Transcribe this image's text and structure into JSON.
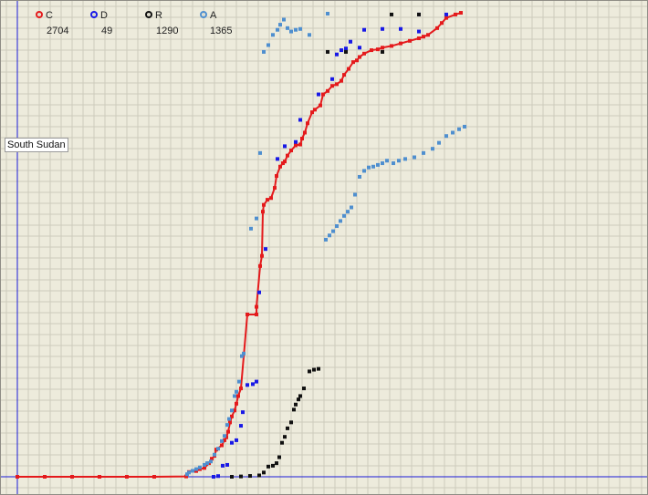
{
  "legend": [
    {
      "key": "C",
      "count": "2704",
      "color": "#e41a1c"
    },
    {
      "key": "D",
      "count": "49",
      "color": "#1919e6"
    },
    {
      "key": "R",
      "count": "1290",
      "color": "#111111"
    },
    {
      "key": "A",
      "count": "1365",
      "color": "#4f8fcf"
    }
  ],
  "country_label": "South Sudan",
  "chart_data": {
    "type": "scatter",
    "title": "",
    "xlabel": "",
    "ylabel": "",
    "grid": true,
    "legend_position": "top-left",
    "xlim": [
      0,
      690
    ],
    "ylim": [
      0,
      2800
    ],
    "series": [
      {
        "name": "C",
        "color": "#e41a1c",
        "line": true,
        "points": [
          [
            0,
            0
          ],
          [
            30,
            0
          ],
          [
            60,
            0
          ],
          [
            90,
            0
          ],
          [
            120,
            0
          ],
          [
            150,
            0
          ],
          [
            185,
            2
          ],
          [
            188,
            28
          ],
          [
            196,
            34
          ],
          [
            200,
            45
          ],
          [
            205,
            52
          ],
          [
            210,
            80
          ],
          [
            213,
            106
          ],
          [
            216,
            123
          ],
          [
            218,
            160
          ],
          [
            224,
            185
          ],
          [
            227,
            215
          ],
          [
            229,
            232
          ],
          [
            231,
            265
          ],
          [
            233,
            320
          ],
          [
            235,
            355
          ],
          [
            238,
            390
          ],
          [
            240,
            430
          ],
          [
            242,
            475
          ],
          [
            245,
            520
          ],
          [
            252,
            955
          ],
          [
            262,
            955
          ],
          [
            262,
            1000
          ],
          [
            266,
            1240
          ],
          [
            268,
            1300
          ],
          [
            269,
            1560
          ],
          [
            270,
            1600
          ],
          [
            274,
            1630
          ],
          [
            278,
            1640
          ],
          [
            282,
            1700
          ],
          [
            284,
            1770
          ],
          [
            288,
            1825
          ],
          [
            291,
            1845
          ],
          [
            293,
            1855
          ],
          [
            296,
            1890
          ],
          [
            300,
            1920
          ],
          [
            305,
            1950
          ],
          [
            310,
            1955
          ],
          [
            312,
            1990
          ],
          [
            315,
            2025
          ],
          [
            318,
            2080
          ],
          [
            323,
            2145
          ],
          [
            326,
            2160
          ],
          [
            332,
            2185
          ],
          [
            335,
            2250
          ],
          [
            340,
            2270
          ],
          [
            345,
            2300
          ],
          [
            350,
            2310
          ],
          [
            355,
            2330
          ],
          [
            358,
            2365
          ],
          [
            363,
            2400
          ],
          [
            368,
            2440
          ],
          [
            372,
            2450
          ],
          [
            375,
            2470
          ],
          [
            380,
            2490
          ],
          [
            388,
            2510
          ],
          [
            395,
            2515
          ],
          [
            400,
            2525
          ],
          [
            410,
            2535
          ],
          [
            420,
            2550
          ],
          [
            430,
            2565
          ],
          [
            440,
            2580
          ],
          [
            445,
            2590
          ],
          [
            450,
            2600
          ],
          [
            460,
            2640
          ],
          [
            465,
            2670
          ],
          [
            470,
            2700
          ],
          [
            480,
            2720
          ],
          [
            486,
            2730
          ]
        ]
      },
      {
        "name": "D",
        "color": "#1919e6",
        "line": false,
        "points": [
          [
            215,
            0
          ],
          [
            220,
            4
          ],
          [
            225,
            65
          ],
          [
            230,
            70
          ],
          [
            235,
            200
          ],
          [
            240,
            215
          ],
          [
            245,
            300
          ],
          [
            247,
            380
          ],
          [
            252,
            540
          ],
          [
            258,
            545
          ],
          [
            262,
            560
          ],
          [
            265,
            1085
          ],
          [
            272,
            1340
          ],
          [
            285,
            1870
          ],
          [
            293,
            1945
          ],
          [
            305,
            1970
          ],
          [
            310,
            2100
          ],
          [
            330,
            2250
          ],
          [
            345,
            2340
          ],
          [
            350,
            2485
          ],
          [
            355,
            2510
          ],
          [
            360,
            2520
          ],
          [
            365,
            2560
          ],
          [
            375,
            2525
          ],
          [
            380,
            2630
          ],
          [
            400,
            2635
          ],
          [
            420,
            2635
          ],
          [
            440,
            2620
          ],
          [
            440,
            2720
          ],
          [
            470,
            2720
          ]
        ]
      },
      {
        "name": "R",
        "color": "#111111",
        "line": false,
        "points": [
          [
            235,
            0
          ],
          [
            245,
            2
          ],
          [
            255,
            5
          ],
          [
            265,
            8
          ],
          [
            270,
            25
          ],
          [
            275,
            60
          ],
          [
            280,
            65
          ],
          [
            284,
            80
          ],
          [
            287,
            115
          ],
          [
            290,
            200
          ],
          [
            293,
            235
          ],
          [
            296,
            285
          ],
          [
            300,
            320
          ],
          [
            303,
            395
          ],
          [
            305,
            425
          ],
          [
            308,
            455
          ],
          [
            310,
            475
          ],
          [
            314,
            520
          ],
          [
            320,
            620
          ],
          [
            325,
            630
          ],
          [
            330,
            635
          ],
          [
            340,
            2500
          ],
          [
            360,
            2500
          ],
          [
            400,
            2500
          ],
          [
            410,
            2720
          ],
          [
            440,
            2720
          ]
        ]
      },
      {
        "name": "A",
        "color": "#4f8fcf",
        "line": false,
        "points": [
          [
            186,
            15
          ],
          [
            188,
            25
          ],
          [
            192,
            35
          ],
          [
            196,
            45
          ],
          [
            200,
            55
          ],
          [
            205,
            70
          ],
          [
            208,
            80
          ],
          [
            212,
            90
          ],
          [
            216,
            130
          ],
          [
            220,
            165
          ],
          [
            224,
            210
          ],
          [
            227,
            240
          ],
          [
            230,
            305
          ],
          [
            232,
            340
          ],
          [
            235,
            390
          ],
          [
            238,
            475
          ],
          [
            240,
            500
          ],
          [
            243,
            560
          ],
          [
            246,
            710
          ],
          [
            248,
            725
          ],
          [
            256,
            1460
          ],
          [
            262,
            1520
          ],
          [
            266,
            1905
          ],
          [
            270,
            2500
          ],
          [
            275,
            2540
          ],
          [
            280,
            2600
          ],
          [
            285,
            2630
          ],
          [
            288,
            2660
          ],
          [
            292,
            2690
          ],
          [
            296,
            2640
          ],
          [
            300,
            2620
          ],
          [
            305,
            2630
          ],
          [
            310,
            2635
          ],
          [
            320,
            2600
          ],
          [
            340,
            2725
          ],
          [
            338,
            1395
          ],
          [
            342,
            1420
          ],
          [
            346,
            1445
          ],
          [
            350,
            1475
          ],
          [
            354,
            1505
          ],
          [
            358,
            1535
          ],
          [
            362,
            1560
          ],
          [
            366,
            1585
          ],
          [
            370,
            1660
          ],
          [
            375,
            1765
          ],
          [
            380,
            1800
          ],
          [
            385,
            1820
          ],
          [
            390,
            1825
          ],
          [
            395,
            1835
          ],
          [
            400,
            1845
          ],
          [
            405,
            1860
          ],
          [
            412,
            1845
          ],
          [
            418,
            1860
          ],
          [
            425,
            1870
          ],
          [
            435,
            1880
          ],
          [
            445,
            1905
          ],
          [
            455,
            1930
          ],
          [
            462,
            1965
          ],
          [
            470,
            2005
          ],
          [
            477,
            2025
          ],
          [
            484,
            2045
          ],
          [
            490,
            2060
          ]
        ]
      }
    ]
  }
}
